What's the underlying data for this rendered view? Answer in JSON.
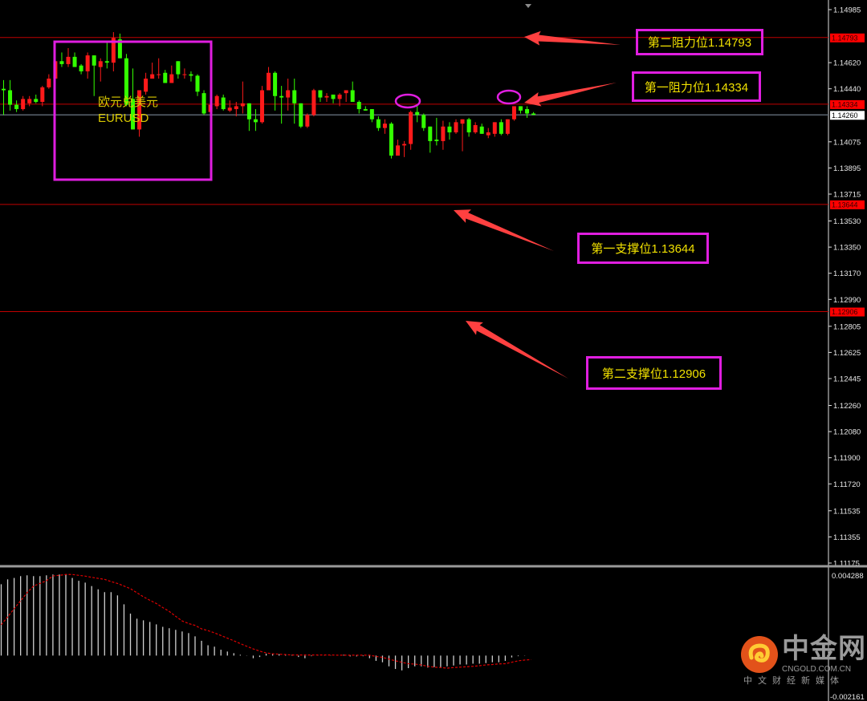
{
  "chart_data": {
    "type": "candlestick",
    "symbol_cn": "欧元兑美元",
    "symbol": "EURUSD",
    "price_axis": {
      "range": [
        1.11175,
        1.14985
      ],
      "ticks": [
        "1.14985",
        "1.14620",
        "1.14440",
        "1.14075",
        "1.13895",
        "1.13715",
        "1.13530",
        "1.13350",
        "1.13170",
        "1.12990",
        "1.12805",
        "1.12625",
        "1.12445",
        "1.12260",
        "1.12080",
        "1.11900",
        "1.11720",
        "1.11535",
        "1.11355",
        "1.11175"
      ]
    },
    "levels": [
      {
        "value": 1.14793,
        "label": "1.14793",
        "note": "第二阻力位1.14793"
      },
      {
        "value": 1.14334,
        "label": "1.14334",
        "note": "第一阻力位1.14334"
      },
      {
        "value": 1.13644,
        "label": "1.13644",
        "note": "第一支撑位1.13644"
      },
      {
        "value": 1.12906,
        "label": "1.12906",
        "note": "第二支撑位1.12906"
      }
    ],
    "current_price": {
      "value": 1.1426,
      "label": "1.14260"
    },
    "candles_ohlc": [
      [
        1.1444,
        1.145,
        1.1426,
        1.1443
      ],
      [
        1.1443,
        1.145,
        1.1429,
        1.1433
      ],
      [
        1.1433,
        1.1436,
        1.1428,
        1.143
      ],
      [
        1.143,
        1.1439,
        1.1429,
        1.1437
      ],
      [
        1.1434,
        1.1439,
        1.1432,
        1.1437
      ],
      [
        1.1437,
        1.144,
        1.1434,
        1.1435
      ],
      [
        1.1435,
        1.1446,
        1.1432,
        1.1445
      ],
      [
        1.1445,
        1.1454,
        1.1444,
        1.1451
      ],
      [
        1.1451,
        1.1465,
        1.1449,
        1.1463
      ],
      [
        1.1463,
        1.1469,
        1.1459,
        1.1461
      ],
      [
        1.1461,
        1.1472,
        1.1459,
        1.1466
      ],
      [
        1.1466,
        1.1469,
        1.1459,
        1.1459
      ],
      [
        1.146,
        1.1461,
        1.1454,
        1.1456
      ],
      [
        1.1456,
        1.1469,
        1.1451,
        1.1467
      ],
      [
        1.1467,
        1.1467,
        1.1439,
        1.146
      ],
      [
        1.1459,
        1.1465,
        1.1449,
        1.1463
      ],
      [
        1.1463,
        1.1476,
        1.1458,
        1.1462
      ],
      [
        1.1462,
        1.1483,
        1.1456,
        1.1479
      ],
      [
        1.1478,
        1.1482,
        1.1465,
        1.1465
      ],
      [
        1.1465,
        1.1468,
        1.1432,
        1.1433
      ],
      [
        1.1437,
        1.1458,
        1.1416,
        1.1416
      ],
      [
        1.1416,
        1.1443,
        1.1411,
        1.1443
      ],
      [
        1.1442,
        1.1455,
        1.144,
        1.1451
      ],
      [
        1.1451,
        1.1462,
        1.1451,
        1.1454
      ],
      [
        1.1454,
        1.1465,
        1.1451,
        1.1454
      ],
      [
        1.1455,
        1.1457,
        1.1448,
        1.1448
      ],
      [
        1.1448,
        1.146,
        1.1448,
        1.1454
      ],
      [
        1.1463,
        1.1463,
        1.1451,
        1.1454
      ],
      [
        1.1454,
        1.1458,
        1.1451,
        1.1454
      ],
      [
        1.1454,
        1.1456,
        1.1449,
        1.1453
      ],
      [
        1.1453,
        1.1454,
        1.1439,
        1.1442
      ],
      [
        1.1441,
        1.1443,
        1.1426,
        1.1427
      ],
      [
        1.1428,
        1.1433,
        1.1424,
        1.1433
      ],
      [
        1.1432,
        1.144,
        1.143,
        1.1439
      ],
      [
        1.1438,
        1.144,
        1.1429,
        1.143
      ],
      [
        1.1429,
        1.1436,
        1.1428,
        1.1431
      ],
      [
        1.143,
        1.1435,
        1.1425,
        1.1432
      ],
      [
        1.1432,
        1.1449,
        1.1427,
        1.1434
      ],
      [
        1.1434,
        1.1434,
        1.1415,
        1.1423
      ],
      [
        1.1423,
        1.143,
        1.1415,
        1.1421
      ],
      [
        1.1421,
        1.1446,
        1.142,
        1.1443
      ],
      [
        1.1443,
        1.1459,
        1.1443,
        1.1455
      ],
      [
        1.1455,
        1.1456,
        1.1429,
        1.1439
      ],
      [
        1.1439,
        1.1446,
        1.142,
        1.1438
      ],
      [
        1.1438,
        1.1451,
        1.1429,
        1.1443
      ],
      [
        1.1443,
        1.1451,
        1.142,
        1.1434
      ],
      [
        1.1434,
        1.1434,
        1.1417,
        1.1418
      ],
      [
        1.1418,
        1.1427,
        1.1417,
        1.1426
      ],
      [
        1.1426,
        1.1444,
        1.1425,
        1.1443
      ],
      [
        1.1443,
        1.1443,
        1.1435,
        1.1438
      ],
      [
        1.1438,
        1.1441,
        1.1435,
        1.1439
      ],
      [
        1.144,
        1.144,
        1.1434,
        1.1437
      ],
      [
        1.1437,
        1.1441,
        1.1432,
        1.144
      ],
      [
        1.1441,
        1.1443,
        1.1435,
        1.1443
      ],
      [
        1.1443,
        1.1449,
        1.1435,
        1.1435
      ],
      [
        1.1435,
        1.1436,
        1.1427,
        1.143
      ],
      [
        1.143,
        1.1432,
        1.1429,
        1.1429
      ],
      [
        1.143,
        1.143,
        1.1421,
        1.1423
      ],
      [
        1.1423,
        1.1425,
        1.1415,
        1.1417
      ],
      [
        1.1417,
        1.1423,
        1.1413,
        1.142
      ],
      [
        1.142,
        1.1421,
        1.1396,
        1.1398
      ],
      [
        1.1398,
        1.1409,
        1.1398,
        1.1405
      ],
      [
        1.1405,
        1.1408,
        1.1397,
        1.1406
      ],
      [
        1.1406,
        1.1429,
        1.1402,
        1.1428
      ],
      [
        1.1428,
        1.1433,
        1.1421,
        1.1426
      ],
      [
        1.1426,
        1.1427,
        1.1415,
        1.1417
      ],
      [
        1.1418,
        1.1418,
        1.14,
        1.1408
      ],
      [
        1.1409,
        1.1424,
        1.1405,
        1.1408
      ],
      [
        1.1408,
        1.1422,
        1.1402,
        1.1418
      ],
      [
        1.1418,
        1.1421,
        1.1409,
        1.1414
      ],
      [
        1.1414,
        1.1423,
        1.1413,
        1.1421
      ],
      [
        1.142,
        1.1423,
        1.1401,
        1.1423
      ],
      [
        1.1423,
        1.1424,
        1.1411,
        1.1414
      ],
      [
        1.1414,
        1.1421,
        1.1413,
        1.1419
      ],
      [
        1.1418,
        1.142,
        1.1413,
        1.1413
      ],
      [
        1.1412,
        1.1417,
        1.141,
        1.1414
      ],
      [
        1.1413,
        1.1421,
        1.1411,
        1.1421
      ],
      [
        1.1421,
        1.1423,
        1.1412,
        1.1413
      ],
      [
        1.1413,
        1.1423,
        1.1412,
        1.1423
      ],
      [
        1.1423,
        1.1432,
        1.1422,
        1.1432
      ],
      [
        1.1432,
        1.1432,
        1.1427,
        1.1429
      ],
      [
        1.143,
        1.1432,
        1.1424,
        1.1427
      ],
      [
        1.1427,
        1.1428,
        1.1426,
        1.1426
      ]
    ],
    "indicator": {
      "axis_top_label": "0.004288",
      "axis_bottom_label": "-0.002161",
      "range": [
        -0.002161,
        0.004288
      ],
      "histogram": [
        0.00352,
        0.00376,
        0.00383,
        0.00392,
        0.00396,
        0.00392,
        0.00392,
        0.00396,
        0.004,
        0.004,
        0.004,
        0.00383,
        0.00369,
        0.0036,
        0.00343,
        0.00327,
        0.00313,
        0.00313,
        0.00297,
        0.00253,
        0.00207,
        0.00182,
        0.00174,
        0.00166,
        0.00154,
        0.00142,
        0.00135,
        0.00127,
        0.00119,
        0.00111,
        0.00095,
        0.00073,
        0.00051,
        0.00044,
        0.00029,
        0.0002,
        0.00012,
        4e-05,
        -1e-05,
        -0.00013,
        -7e-05,
        9e-05,
        7e-05,
        7e-05,
        7e-05,
        4e-05,
        -7e-05,
        -0.00013,
        -3e-05,
        1e-05,
        1e-05,
        1e-05,
        1e-05,
        4e-05,
        -4e-05,
        -4e-05,
        -3e-05,
        -0.00013,
        -0.00026,
        -0.00033,
        -0.00053,
        -0.00066,
        -0.00073,
        -0.00062,
        -0.00053,
        -0.00053,
        -0.00059,
        -0.00057,
        -0.00057,
        -0.00053,
        -0.00049,
        -0.00044,
        -0.00044,
        -0.0004,
        -0.0004,
        -0.00037,
        -0.00033,
        -0.00033,
        -0.00026,
        -9e-05,
        -3e-05,
        -1e-05,
        0.0
      ],
      "signal": [
        0.00152,
        0.00191,
        0.00231,
        0.0027,
        0.0031,
        0.00343,
        0.00356,
        0.00369,
        0.00393,
        0.00396,
        0.004,
        0.004,
        0.00396,
        0.00392,
        0.00386,
        0.00381,
        0.00376,
        0.00365,
        0.00356,
        0.00343,
        0.0033,
        0.0031,
        0.0029,
        0.00273,
        0.00257,
        0.00237,
        0.00218,
        0.00194,
        0.00171,
        0.00158,
        0.00149,
        0.00132,
        0.00123,
        0.00112,
        0.00099,
        0.00086,
        0.00073,
        0.00059,
        0.00046,
        0.00033,
        0.00022,
        0.00013,
        9e-05,
        7e-05,
        5e-05,
        3e-05,
        3e-05,
        3e-05,
        3e-05,
        3e-05,
        3e-05,
        3e-05,
        2e-05,
        2e-05,
        2e-05,
        2e-05,
        2e-05,
        2e-05,
        -4e-05,
        -9e-05,
        -0.00017,
        -0.00026,
        -0.00033,
        -0.0004,
        -0.00042,
        -0.00046,
        -0.00053,
        -0.00057,
        -0.00059,
        -0.00062,
        -0.00059,
        -0.00057,
        -0.00055,
        -0.00053,
        -0.0005,
        -0.00046,
        -0.00044,
        -0.00041,
        -0.0004,
        -0.00033,
        -0.00026,
        -0.00022,
        -0.0002
      ]
    },
    "colors": {
      "up": "#ff1a1a",
      "down": "#33ff00",
      "level_line": "#c00000",
      "current_line": "#5a6470",
      "annotation": "#e01ee0",
      "note_text": "#f0e000",
      "arrow": "#ff4040",
      "signal": "#e00000",
      "histogram": "#d0d0d0"
    }
  },
  "watermark": {
    "name": "中金网",
    "site": "CNGOLD.COM.CN",
    "slogan": "中文财经新媒体"
  }
}
